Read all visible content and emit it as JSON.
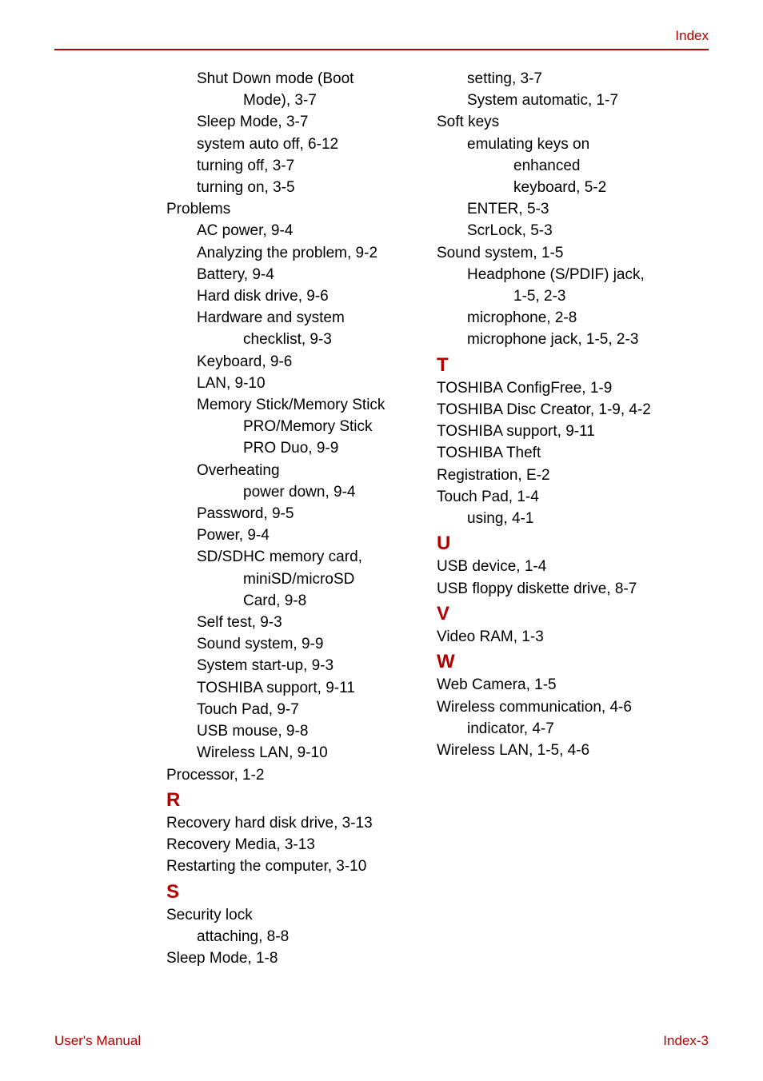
{
  "colors": {
    "text": "#000000",
    "accent": "#b30000",
    "background": "#ffffff",
    "divider": "#b30000"
  },
  "typography": {
    "body_fontsize": 19,
    "body_lineheight": 27.2,
    "section_fontsize": 24,
    "header_footer_fontsize": 17,
    "font_family": "Arial, Helvetica, sans-serif"
  },
  "header": {
    "label": "Index"
  },
  "footer": {
    "left": "User's Manual",
    "right": "Index-3"
  },
  "col1": {
    "block1": [
      {
        "text": "Shut Down mode (Boot",
        "indent": 1
      },
      {
        "text": "Mode), 3-7",
        "indent": 2
      },
      {
        "text": "Sleep Mode, 3-7",
        "indent": 1
      },
      {
        "text": "system auto off, 6-12",
        "indent": 1
      },
      {
        "text": "turning off, 3-7",
        "indent": 1
      },
      {
        "text": "turning on, 3-5",
        "indent": 1
      },
      {
        "text": "Problems",
        "indent": 0
      },
      {
        "text": "AC power, 9-4",
        "indent": 1
      },
      {
        "text": "Analyzing the problem, 9-2",
        "indent": 1
      },
      {
        "text": "Battery, 9-4",
        "indent": 1
      },
      {
        "text": "Hard disk drive, 9-6",
        "indent": 1
      },
      {
        "text": "Hardware and system",
        "indent": 1
      },
      {
        "text": "checklist, 9-3",
        "indent": 2
      },
      {
        "text": "Keyboard, 9-6",
        "indent": 1
      },
      {
        "text": "LAN, 9-10",
        "indent": 1
      },
      {
        "text": "Memory Stick/Memory Stick",
        "indent": 1
      },
      {
        "text": "PRO/Memory Stick",
        "indent": 2
      },
      {
        "text": "PRO Duo, 9-9",
        "indent": 2
      },
      {
        "text": "Overheating",
        "indent": 1
      },
      {
        "text": "power down, 9-4",
        "indent": 2
      },
      {
        "text": "Password, 9-5",
        "indent": 1
      },
      {
        "text": "Power, 9-4",
        "indent": 1
      },
      {
        "text": "SD/SDHC memory card,",
        "indent": 1
      },
      {
        "text": "miniSD/microSD",
        "indent": 2
      },
      {
        "text": "Card, 9-8",
        "indent": 2
      },
      {
        "text": "Self test, 9-3",
        "indent": 1
      },
      {
        "text": "Sound system, 9-9",
        "indent": 1
      },
      {
        "text": "System start-up, 9-3",
        "indent": 1
      },
      {
        "text": "TOSHIBA support, 9-11",
        "indent": 1
      },
      {
        "text": "Touch Pad, 9-7",
        "indent": 1
      },
      {
        "text": "USB mouse, 9-8",
        "indent": 1
      },
      {
        "text": "Wireless LAN, 9-10",
        "indent": 1
      },
      {
        "text": "Processor, 1-2",
        "indent": 0
      }
    ],
    "section_r": "R",
    "block_r": [
      {
        "text": "Recovery hard disk drive, 3-13",
        "indent": 0
      },
      {
        "text": "Recovery Media, 3-13",
        "indent": 0
      },
      {
        "text": "Restarting the computer, 3-10",
        "indent": 0
      }
    ],
    "section_s": "S",
    "block_s": [
      {
        "text": "Security lock",
        "indent": 0
      },
      {
        "text": "attaching, 8-8",
        "indent": 1
      },
      {
        "text": "Sleep Mode, 1-8",
        "indent": 0
      }
    ]
  },
  "col2": {
    "block1": [
      {
        "text": "setting, 3-7",
        "indent": 1
      },
      {
        "text": "System automatic, 1-7",
        "indent": 1
      },
      {
        "text": "Soft keys",
        "indent": 0
      },
      {
        "text": "emulating keys on",
        "indent": 1
      },
      {
        "text": "enhanced",
        "indent": 2
      },
      {
        "text": "keyboard, 5-2",
        "indent": 2
      },
      {
        "text": "ENTER, 5-3",
        "indent": 1
      },
      {
        "text": "ScrLock, 5-3",
        "indent": 1
      },
      {
        "text": "Sound system, 1-5",
        "indent": 0
      },
      {
        "text": "Headphone (S/PDIF) jack,",
        "indent": 1
      },
      {
        "text": "1-5, 2-3",
        "indent": 2
      },
      {
        "text": "microphone, 2-8",
        "indent": 1
      },
      {
        "text": "microphone jack, 1-5, 2-3",
        "indent": 1
      }
    ],
    "section_t": "T",
    "block_t": [
      {
        "text": "TOSHIBA ConfigFree, 1-9",
        "indent": 0
      },
      {
        "text": "TOSHIBA Disc Creator, 1-9, 4-2",
        "indent": 0
      },
      {
        "text": "TOSHIBA support, 9-11",
        "indent": 0
      },
      {
        "text": "TOSHIBA Theft",
        "indent": 0
      },
      {
        "text": "Registration, E-2",
        "indent": 0
      },
      {
        "text": "Touch Pad, 1-4",
        "indent": 0
      },
      {
        "text": "using, 4-1",
        "indent": 1
      }
    ],
    "section_u": "U",
    "block_u": [
      {
        "text": "USB device, 1-4",
        "indent": 0
      },
      {
        "text": "USB floppy diskette drive, 8-7",
        "indent": 0
      }
    ],
    "section_v": "V",
    "block_v": [
      {
        "text": "Video RAM, 1-3",
        "indent": 0
      }
    ],
    "section_w": "W",
    "block_w": [
      {
        "text": "Web Camera, 1-5",
        "indent": 0
      },
      {
        "text": "Wireless communication, 4-6",
        "indent": 0
      },
      {
        "text": "indicator, 4-7",
        "indent": 1
      },
      {
        "text": "Wireless LAN, 1-5, 4-6",
        "indent": 0
      }
    ]
  }
}
